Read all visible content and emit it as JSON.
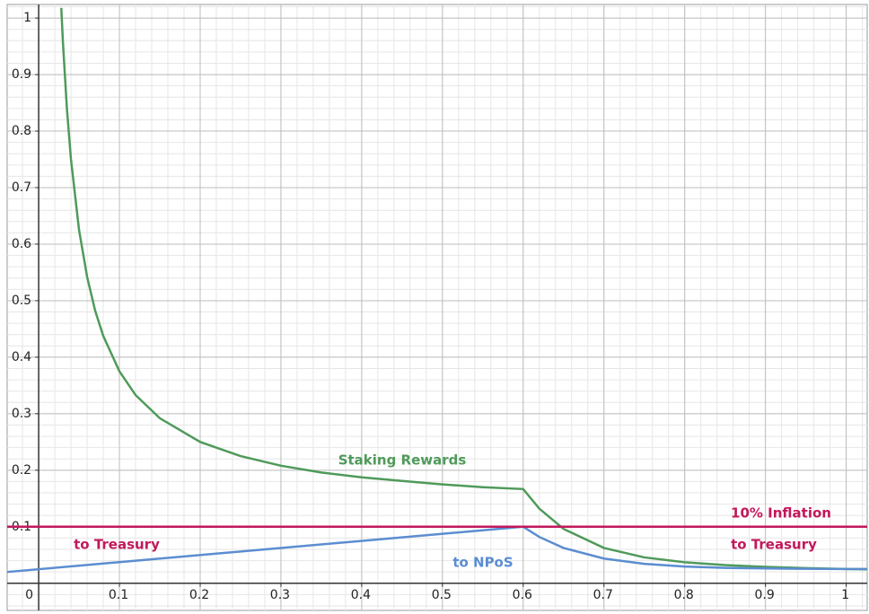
{
  "chart_data": {
    "type": "line",
    "xlim": [
      -0.039,
      1.026
    ],
    "ylim": [
      -0.048,
      1.024
    ],
    "xticks": [
      0,
      0.1,
      0.2,
      0.3,
      0.4,
      0.5,
      0.6,
      0.7,
      0.8,
      0.9,
      1
    ],
    "yticks": [
      0.1,
      0.2,
      0.3,
      0.4,
      0.5,
      0.6,
      0.7,
      0.8,
      0.9,
      1
    ],
    "grid": true,
    "series": [
      {
        "name": "Staking Rewards",
        "color": "#4f9a5a",
        "x": [
          0.028,
          0.03,
          0.035,
          0.04,
          0.05,
          0.06,
          0.07,
          0.08,
          0.1,
          0.12,
          0.15,
          0.2,
          0.25,
          0.3,
          0.35,
          0.4,
          0.45,
          0.5,
          0.55,
          0.6,
          0.62,
          0.65,
          0.7,
          0.75,
          0.8,
          0.85,
          0.9,
          0.95,
          1.0,
          1.026
        ],
        "values": [
          1.018,
          0.958,
          0.839,
          0.75,
          0.625,
          0.542,
          0.482,
          0.4375,
          0.375,
          0.333,
          0.292,
          0.25,
          0.225,
          0.208,
          0.196,
          0.1875,
          0.181,
          0.175,
          0.17,
          0.1667,
          0.132,
          0.0962,
          0.0625,
          0.0458,
          0.0371,
          0.0322,
          0.0291,
          0.0269,
          0.0253,
          0.0246
        ]
      },
      {
        "name": "to NPoS",
        "color": "#5b8dd0",
        "x": [
          -0.039,
          0.6,
          0.62,
          0.65,
          0.7,
          0.75,
          0.8,
          0.85,
          0.9,
          0.95,
          1.0,
          1.026
        ],
        "values": [
          0.02,
          0.1,
          0.0819,
          0.0625,
          0.04375,
          0.0344,
          0.0297,
          0.0273,
          0.0262,
          0.0256,
          0.0253,
          0.0252
        ]
      },
      {
        "name": "10% Inflation",
        "color": "#c2185b",
        "x": [
          -0.039,
          1.026
        ],
        "values": [
          0.1,
          0.1
        ]
      }
    ],
    "annotations": [
      "to Treasury",
      "to Treasury"
    ]
  }
}
